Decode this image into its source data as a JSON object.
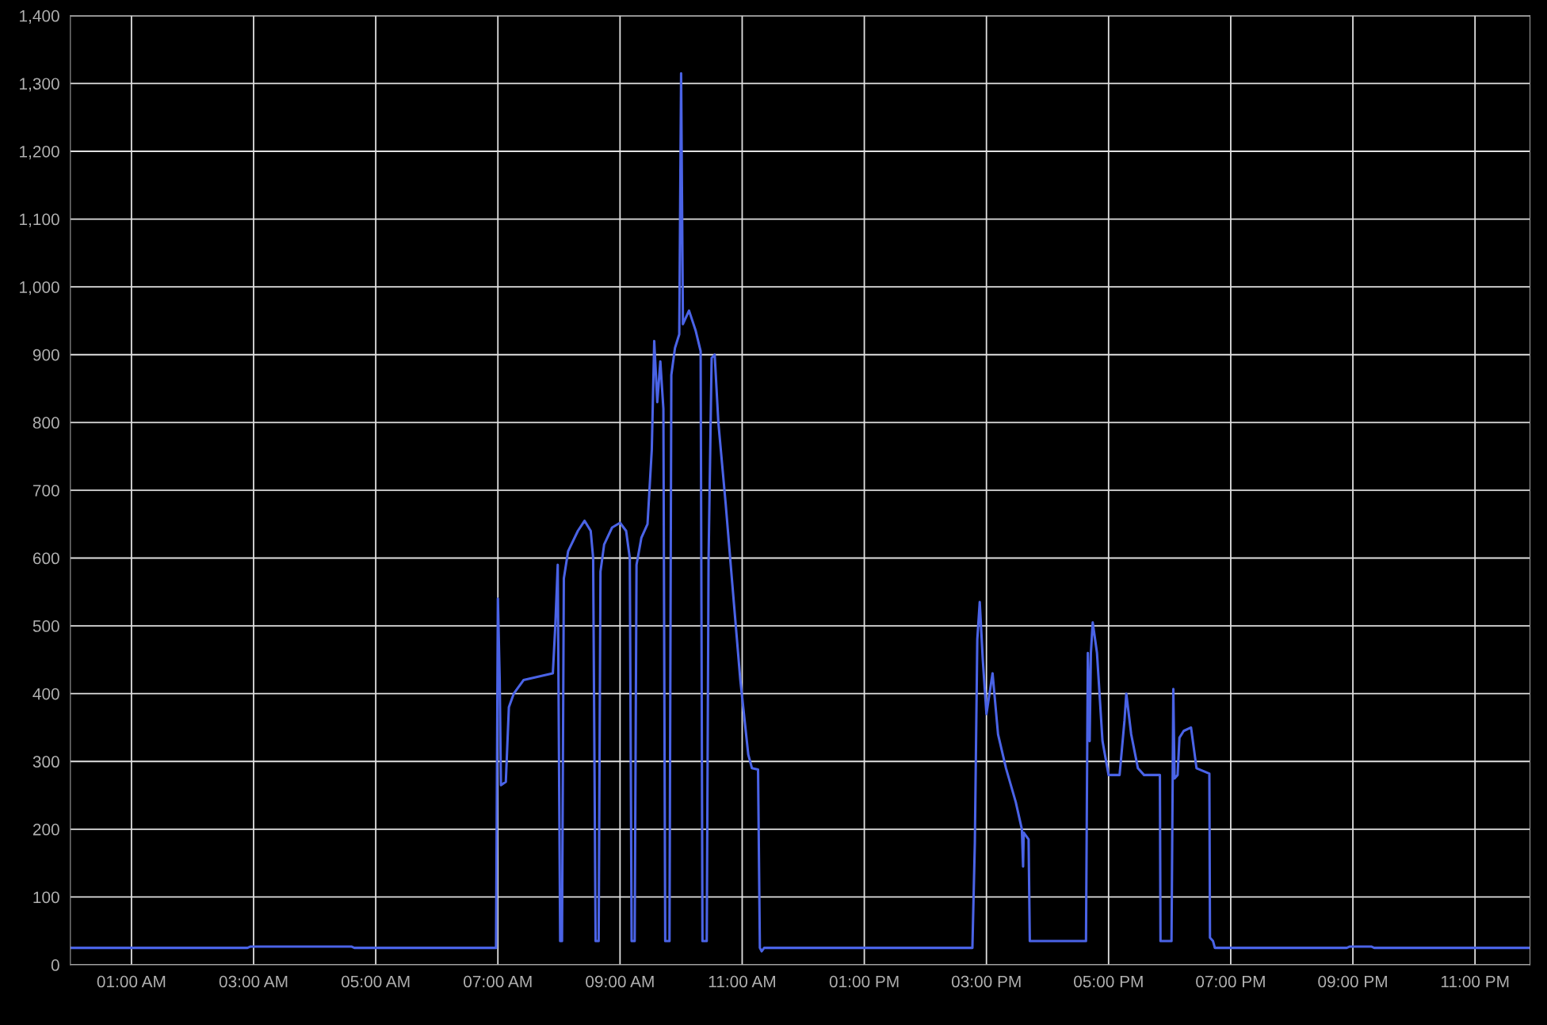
{
  "chart_data": {
    "type": "line",
    "color": "#4a63e6",
    "grid": true,
    "marker": "none",
    "line_style": "solid",
    "x": [
      0,
      2.9,
      2.95,
      4.6,
      4.65,
      6.97,
      7.0,
      7.03,
      7.05,
      7.13,
      7.18,
      7.26,
      7.42,
      7.66,
      7.9,
      7.94,
      7.98,
      8.02,
      8.05,
      8.08,
      8.15,
      8.31,
      8.42,
      8.52,
      8.56,
      8.6,
      8.65,
      8.68,
      8.74,
      8.87,
      9.0,
      9.1,
      9.16,
      9.19,
      9.24,
      9.27,
      9.35,
      9.45,
      9.52,
      9.56,
      9.61,
      9.66,
      9.71,
      9.74,
      9.81,
      9.84,
      9.9,
      9.97,
      10.0,
      10.03,
      10.13,
      10.24,
      10.32,
      10.35,
      10.42,
      10.45,
      10.5,
      10.55,
      10.61,
      10.73,
      10.84,
      10.97,
      11.1,
      11.16,
      11.26,
      11.29,
      11.32,
      11.36,
      14.77,
      14.81,
      14.85,
      14.89,
      14.94,
      15.0,
      15.1,
      15.19,
      15.32,
      15.48,
      15.58,
      15.6,
      15.61,
      15.69,
      15.71,
      16.63,
      16.66,
      16.69,
      16.71,
      16.74,
      16.81,
      16.9,
      17.0,
      17.18,
      17.26,
      17.29,
      17.37,
      17.48,
      17.58,
      17.84,
      17.85,
      18.03,
      18.06,
      18.08,
      18.13,
      18.16,
      18.23,
      18.35,
      18.44,
      18.65,
      18.66,
      18.71,
      18.74,
      20.9,
      20.95,
      21.3,
      21.35,
      23.9
    ],
    "values": [
      25,
      25,
      27,
      27,
      25,
      25,
      540,
      420,
      265,
      270,
      380,
      400,
      420,
      425,
      430,
      500,
      590,
      35,
      35,
      570,
      610,
      640,
      655,
      640,
      600,
      35,
      35,
      580,
      620,
      645,
      652,
      640,
      600,
      35,
      35,
      590,
      630,
      650,
      760,
      920,
      830,
      890,
      820,
      35,
      35,
      870,
      910,
      930,
      1315,
      945,
      965,
      935,
      905,
      35,
      35,
      600,
      895,
      900,
      800,
      680,
      560,
      420,
      310,
      290,
      288,
      25,
      20,
      25,
      25,
      180,
      480,
      535,
      450,
      370,
      430,
      340,
      290,
      240,
      200,
      145,
      195,
      185,
      35,
      35,
      460,
      330,
      460,
      505,
      460,
      330,
      280,
      280,
      360,
      400,
      340,
      290,
      280,
      280,
      35,
      35,
      407,
      275,
      280,
      335,
      345,
      350,
      290,
      282,
      40,
      35,
      25,
      25,
      27,
      27,
      25,
      25
    ],
    "xlim": [
      0,
      23.9
    ],
    "xticks": [
      {
        "value": 1,
        "label": "01:00 AM"
      },
      {
        "value": 3,
        "label": "03:00 AM"
      },
      {
        "value": 5,
        "label": "05:00 AM"
      },
      {
        "value": 7,
        "label": "07:00 AM"
      },
      {
        "value": 9,
        "label": "09:00 AM"
      },
      {
        "value": 11,
        "label": "11:00 AM"
      },
      {
        "value": 13,
        "label": "01:00 PM"
      },
      {
        "value": 15,
        "label": "03:00 PM"
      },
      {
        "value": 17,
        "label": "05:00 PM"
      },
      {
        "value": 19,
        "label": "07:00 PM"
      },
      {
        "value": 21,
        "label": "09:00 PM"
      },
      {
        "value": 23,
        "label": "11:00 PM"
      }
    ],
    "ylim": [
      0,
      1400
    ],
    "yticks": [
      0,
      100,
      200,
      300,
      400,
      500,
      600,
      700,
      800,
      900,
      {
        "value": 1000,
        "label": "1,000"
      },
      {
        "value": 1100,
        "label": "1,100"
      },
      {
        "value": 1200,
        "label": "1,200"
      },
      {
        "value": 1300,
        "label": "1,300"
      },
      {
        "value": 1400,
        "label": "1,400"
      }
    ]
  }
}
